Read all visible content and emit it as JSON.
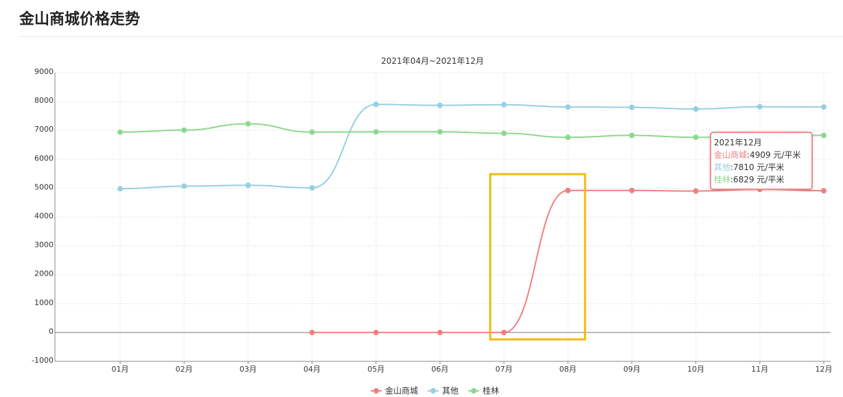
{
  "page": {
    "title": "金山商城价格走势"
  },
  "chart_data": {
    "type": "line",
    "subtitle": "2021年04月~2021年12月",
    "categories": [
      "01月",
      "02月",
      "03月",
      "04月",
      "05月",
      "06月",
      "07月",
      "08月",
      "09月",
      "10月",
      "11月",
      "12月"
    ],
    "ylim": [
      -1000,
      9000
    ],
    "yticks": [
      -1000,
      0,
      1000,
      2000,
      3000,
      4000,
      5000,
      6000,
      7000,
      8000,
      9000
    ],
    "grid": true,
    "legend_position": "bottom",
    "series": [
      {
        "name": "金山商城",
        "color": "#f08080",
        "values": [
          null,
          null,
          null,
          0,
          0,
          0,
          0,
          4920,
          4920,
          4900,
          4960,
          4909
        ]
      },
      {
        "name": "其他",
        "color": "#96cfe0",
        "values": [
          4980,
          5070,
          5100,
          5010,
          7900,
          7870,
          7890,
          7810,
          7800,
          7740,
          7820,
          7810
        ]
      },
      {
        "name": "桂林",
        "color": "#8dd88f",
        "values": [
          6940,
          7010,
          7230,
          6940,
          6950,
          6950,
          6900,
          6760,
          6829,
          6760,
          6760,
          6829
        ]
      }
    ],
    "highlight": {
      "color": "#f2b90c",
      "x_from": "07月",
      "x_to": "08月"
    },
    "tooltip": {
      "title": "2021年12月",
      "rows": [
        {
          "label": "金山商城",
          "value": ":4909 元/平米",
          "color": "#f08080"
        },
        {
          "label": "其他",
          "value": ":7810 元/平米",
          "color": "#96cfe0"
        },
        {
          "label": "桂林",
          "value": ":6829 元/平米",
          "color": "#8dd88f"
        }
      ]
    }
  }
}
